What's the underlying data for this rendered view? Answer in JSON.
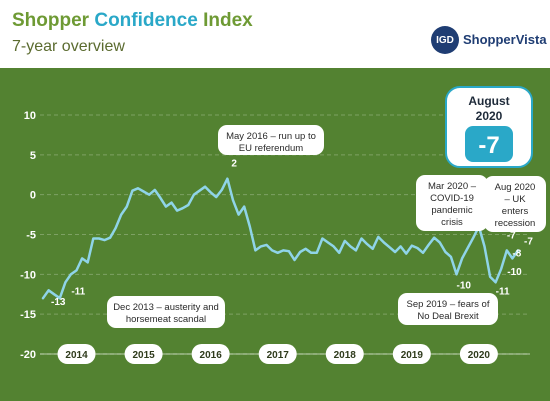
{
  "header": {
    "title_part1": "Shopper",
    "title_part2": "Confidence",
    "title_part3": "Index",
    "subtitle": "7-year overview",
    "logo_mark": "IGD",
    "logo_text": "ShopperVista"
  },
  "colors": {
    "line": "#8fd4e8",
    "background": "#5f8f3a",
    "brand_green": "#6e9a34",
    "brand_blue": "#2aa8c8",
    "year_label_fill": "#ffffff"
  },
  "chart_data": {
    "type": "line",
    "title": "Shopper Confidence Index",
    "subtitle": "7-year overview",
    "ylim": [
      -20,
      10
    ],
    "yticks": [
      "10",
      "5",
      "0",
      "-5",
      "-10",
      "-15",
      "-20"
    ],
    "year_labels": [
      "2014",
      "2015",
      "2016",
      "2017",
      "2018",
      "2019",
      "2020"
    ],
    "grid": true,
    "series": [
      {
        "values": [
          -13,
          -12,
          -12.5,
          -13,
          -11,
          -10,
          -9.5,
          -8,
          -8.5,
          -5.5,
          -5.5,
          -5.7,
          -5.4,
          -4.2,
          -2.5,
          -1.5,
          0.5,
          0.8,
          0.4,
          0,
          0.6,
          -0.4,
          -1.5,
          -1,
          -2,
          -1.7,
          -1.3,
          0,
          0.5,
          1,
          0.3,
          -0.3,
          0.6,
          2,
          -0.7,
          -2.5,
          -1.5,
          -4,
          -7,
          -6.5,
          -6.3,
          -7,
          -7.3,
          -7,
          -7.1,
          -8.2,
          -7.2,
          -6.8,
          -7.3,
          -7.3,
          -5.5,
          -6,
          -6.5,
          -7.3,
          -5.8,
          -6.5,
          -7,
          -5.5,
          -6.2,
          -6.8,
          -5.3,
          -6,
          -6.6,
          -7.2,
          -6.5,
          -7.4,
          -6.4,
          -6.7,
          -7.3,
          -6.3,
          -5.4,
          -6,
          -7.2,
          -7.8,
          -10,
          -8,
          -6.7,
          -5.4,
          -4,
          -6.5,
          -10.3,
          -11,
          -9.3,
          -7,
          -8,
          -7
        ]
      }
    ],
    "data_labels": [
      "-13",
      "-11",
      "2",
      "-10",
      "-11",
      "-10",
      "-8",
      "-7",
      "-7"
    ],
    "annotations": [
      "Dec 2013 – austerity and horsemeat scandal",
      "May 2016 – run up to EU referendum",
      "Mar 2020 – COVID-19 pandemic crisis",
      "Sep 2019 – fears of No Deal Brexit",
      "Aug 2020 – UK enters recession"
    ],
    "callout": {
      "label": "August 2020",
      "value": "-7"
    }
  }
}
